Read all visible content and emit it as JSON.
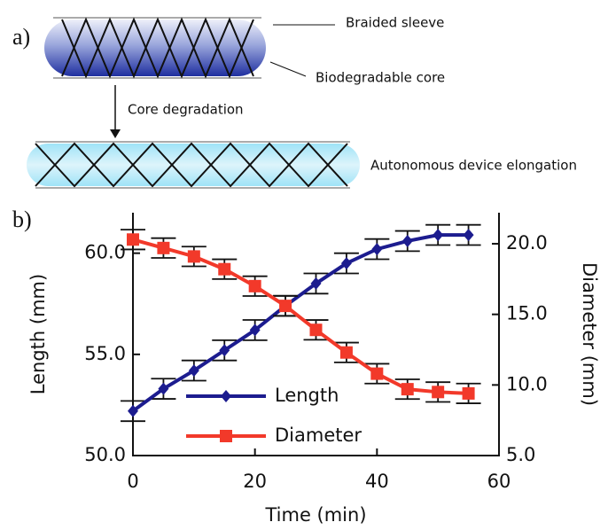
{
  "panel_a": {
    "label": "a)",
    "sleeve_label": "Braided sleeve",
    "core_label": "Biodegradable core",
    "step_label": "Core degradation",
    "result_label": "Autonomous device elongation"
  },
  "chart_data": {
    "type": "line",
    "panel_label": "b)",
    "x_label": "Time (min)",
    "y_label": "Length (mm)",
    "y2_label": "Diameter (mm)",
    "x": [
      0,
      5,
      10,
      15,
      20,
      25,
      30,
      35,
      40,
      45,
      50,
      55
    ],
    "xlim": [
      0,
      60
    ],
    "xticks": [
      0,
      20,
      40,
      60
    ],
    "ylim": [
      50,
      62
    ],
    "yticks": [
      {
        "value": 50,
        "label": "50.0"
      },
      {
        "value": 55,
        "label": "55.0"
      },
      {
        "value": 60,
        "label": "60.0"
      }
    ],
    "y2lim": [
      5,
      22.2
    ],
    "y2ticks": [
      {
        "value": 5,
        "label": "5.0"
      },
      {
        "value": 10,
        "label": "10.0"
      },
      {
        "value": 15,
        "label": "15.0"
      },
      {
        "value": 20,
        "label": "20.0"
      }
    ],
    "series": [
      {
        "name": "Length",
        "color": "#1c1c8f",
        "marker": "diamond",
        "values": [
          52.2,
          53.3,
          54.2,
          55.2,
          56.2,
          57.4,
          58.5,
          59.5,
          60.2,
          60.6,
          60.9,
          60.9
        ],
        "errors": [
          0.5,
          0.5,
          0.5,
          0.5,
          0.5,
          0.5,
          0.5,
          0.5,
          0.5,
          0.5,
          0.5,
          0.5
        ]
      },
      {
        "name": "Diameter",
        "color": "#f2392a",
        "marker": "square",
        "axis": "y2",
        "values": [
          20.3,
          19.7,
          19.1,
          18.2,
          17.0,
          15.6,
          13.9,
          12.3,
          10.8,
          9.7,
          9.5,
          9.4
        ],
        "errors": [
          0.7,
          0.7,
          0.7,
          0.7,
          0.7,
          0.7,
          0.7,
          0.7,
          0.7,
          0.7,
          0.7,
          0.7
        ]
      }
    ]
  }
}
